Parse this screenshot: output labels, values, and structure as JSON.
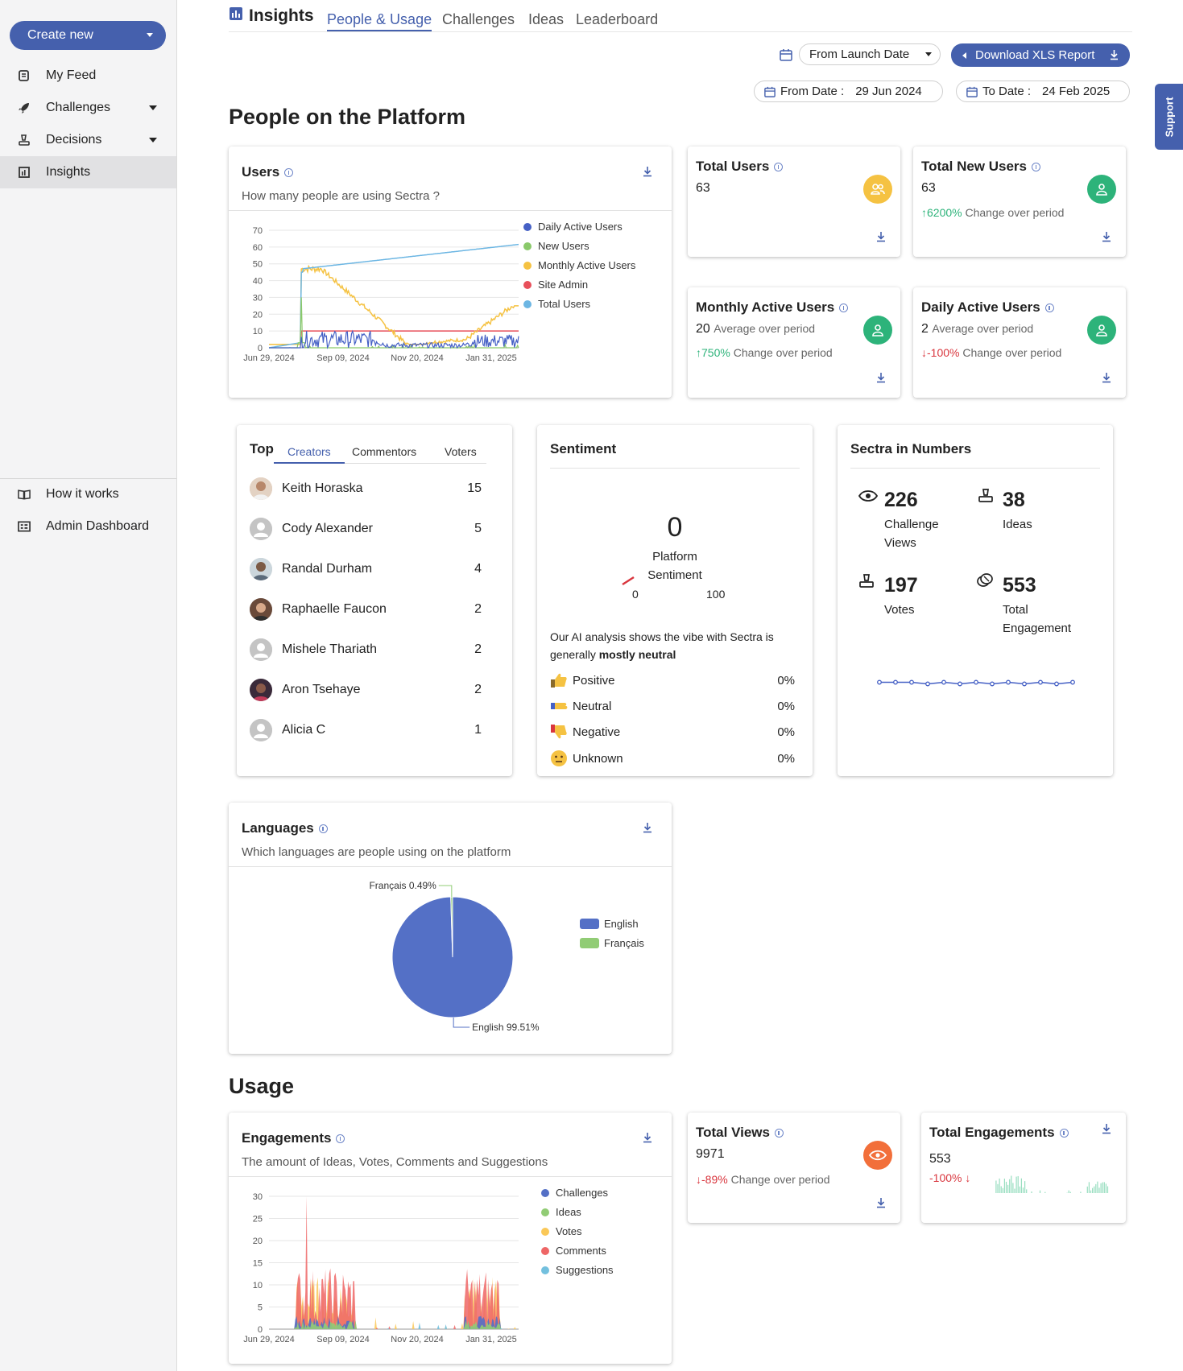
{
  "sidebar": {
    "create_label": "Create new",
    "items": [
      {
        "label": "My Feed",
        "icon": "feed-icon"
      },
      {
        "label": "Challenges",
        "icon": "rocket-icon"
      },
      {
        "label": "Decisions",
        "icon": "gavel-icon"
      },
      {
        "label": "Insights",
        "icon": "insights-icon"
      }
    ],
    "bottom_items": [
      {
        "label": "How it works",
        "icon": "book-icon"
      },
      {
        "label": "Admin Dashboard",
        "icon": "dashboard-icon"
      }
    ]
  },
  "header": {
    "title": "Insights",
    "tabs": [
      "People & Usage",
      "Challenges",
      "Ideas",
      "Leaderboard"
    ],
    "active_tab": "People & Usage",
    "range_select": "From Launch Date",
    "download_label": "Download XLS Report",
    "from_label": "From Date :",
    "from_value": "29 Jun 2024",
    "to_label": "To Date :",
    "to_value": "24 Feb 2025",
    "support_label": "Support"
  },
  "sections": {
    "people": "People on the Platform",
    "usage": "Usage"
  },
  "users_card": {
    "title": "Users",
    "subtitle": "How many people are using Sectra ?",
    "chart_data": {
      "type": "line",
      "x_ticks": [
        "Jun 29, 2024",
        "Sep 09, 2024",
        "Nov 20, 2024",
        "Jan 31, 2025"
      ],
      "ylim": [
        0,
        70
      ],
      "y_ticks": [
        0,
        10,
        20,
        30,
        40,
        50,
        60,
        70
      ],
      "series": [
        {
          "name": "Daily Active Users",
          "color": "#4560c5"
        },
        {
          "name": "New Users",
          "color": "#8ac96a"
        },
        {
          "name": "Monthly Active Users",
          "color": "#f5c242"
        },
        {
          "name": "Site Admin",
          "color": "#e8505b"
        },
        {
          "name": "Total Users",
          "color": "#6cb6e3"
        }
      ]
    }
  },
  "stats": {
    "total_users": {
      "title": "Total Users",
      "value": "63"
    },
    "total_new_users": {
      "title": "Total New Users",
      "value": "63",
      "change": "6200%",
      "change_text": "Change over period"
    },
    "monthly_active": {
      "title": "Monthly Active Users",
      "value": "20",
      "value_note": "Average over period",
      "change": "750%",
      "change_text": "Change over period"
    },
    "daily_active": {
      "title": "Daily Active Users",
      "value": "2",
      "value_note": "Average over period",
      "change": "-100%",
      "change_text": "Change over period"
    }
  },
  "top_card": {
    "title": "Top",
    "tabs": [
      "Creators",
      "Commentors",
      "Voters"
    ],
    "active_tab": "Creators",
    "rows": [
      {
        "name": "Keith Horaska",
        "score": "15",
        "avatar": "photo"
      },
      {
        "name": "Cody Alexander",
        "score": "5",
        "avatar": "placeholder"
      },
      {
        "name": "Randal Durham",
        "score": "4",
        "avatar": "photo"
      },
      {
        "name": "Raphaelle Faucon",
        "score": "2",
        "avatar": "photo"
      },
      {
        "name": "Mishele Thariath",
        "score": "2",
        "avatar": "placeholder"
      },
      {
        "name": "Aron Tsehaye",
        "score": "2",
        "avatar": "photo"
      },
      {
        "name": "Alicia C",
        "score": "1",
        "avatar": "placeholder"
      }
    ]
  },
  "sentiment": {
    "title": "Sentiment",
    "value": "0",
    "label_line1": "Platform",
    "label_line2": "Sentiment",
    "gauge_min": "0",
    "gauge_max": "100",
    "summary_prefix": "Our AI analysis shows the vibe with Sectra is generally",
    "summary_bold": "mostly neutral",
    "rows": [
      {
        "label": "Positive",
        "pct": "0%",
        "icon": "thumbs-up-icon"
      },
      {
        "label": "Neutral",
        "pct": "0%",
        "icon": "thumbs-sideways-icon"
      },
      {
        "label": "Negative",
        "pct": "0%",
        "icon": "thumbs-down-icon"
      },
      {
        "label": "Unknown",
        "pct": "0%",
        "icon": "neutral-face-icon"
      }
    ]
  },
  "numbers": {
    "title": "Sectra in Numbers",
    "items": [
      {
        "value": "226",
        "line1": "Challenge",
        "line2": "Views",
        "icon": "eye-icon"
      },
      {
        "value": "38",
        "line1": "Ideas",
        "line2": "",
        "icon": "stamp-icon"
      },
      {
        "value": "197",
        "line1": "Votes",
        "line2": "",
        "icon": "stamp-icon"
      },
      {
        "value": "553",
        "line1": "Total",
        "line2": "Engagement",
        "icon": "coins-icon"
      }
    ]
  },
  "languages": {
    "title": "Languages",
    "subtitle": "Which languages are people using on the platform",
    "chart_data": {
      "type": "pie",
      "slices": [
        {
          "name": "English",
          "value": 99.51,
          "label": "English 99.51%",
          "color": "#5470c6"
        },
        {
          "name": "Français",
          "value": 0.49,
          "label": "Français 0.49%",
          "color": "#91cc75"
        }
      ]
    }
  },
  "engagements": {
    "title": "Engagements",
    "subtitle": "The amount of Ideas, Votes, Comments and Suggestions",
    "chart_data": {
      "type": "area",
      "x_ticks": [
        "Jun 29, 2024",
        "Sep 09, 2024",
        "Nov 20, 2024",
        "Jan 31, 2025"
      ],
      "ylim": [
        0,
        30
      ],
      "y_ticks": [
        0,
        5,
        10,
        15,
        20,
        25,
        30
      ],
      "series": [
        {
          "name": "Challenges",
          "color": "#5470c6"
        },
        {
          "name": "Ideas",
          "color": "#91cc75"
        },
        {
          "name": "Votes",
          "color": "#fac858"
        },
        {
          "name": "Comments",
          "color": "#ee6666"
        },
        {
          "name": "Suggestions",
          "color": "#73c0de"
        }
      ]
    }
  },
  "total_views": {
    "title": "Total Views",
    "value": "9971",
    "change": "-89%",
    "change_text": "Change over period"
  },
  "total_engagements": {
    "title": "Total Engagements",
    "value": "553",
    "change": "-100%"
  }
}
